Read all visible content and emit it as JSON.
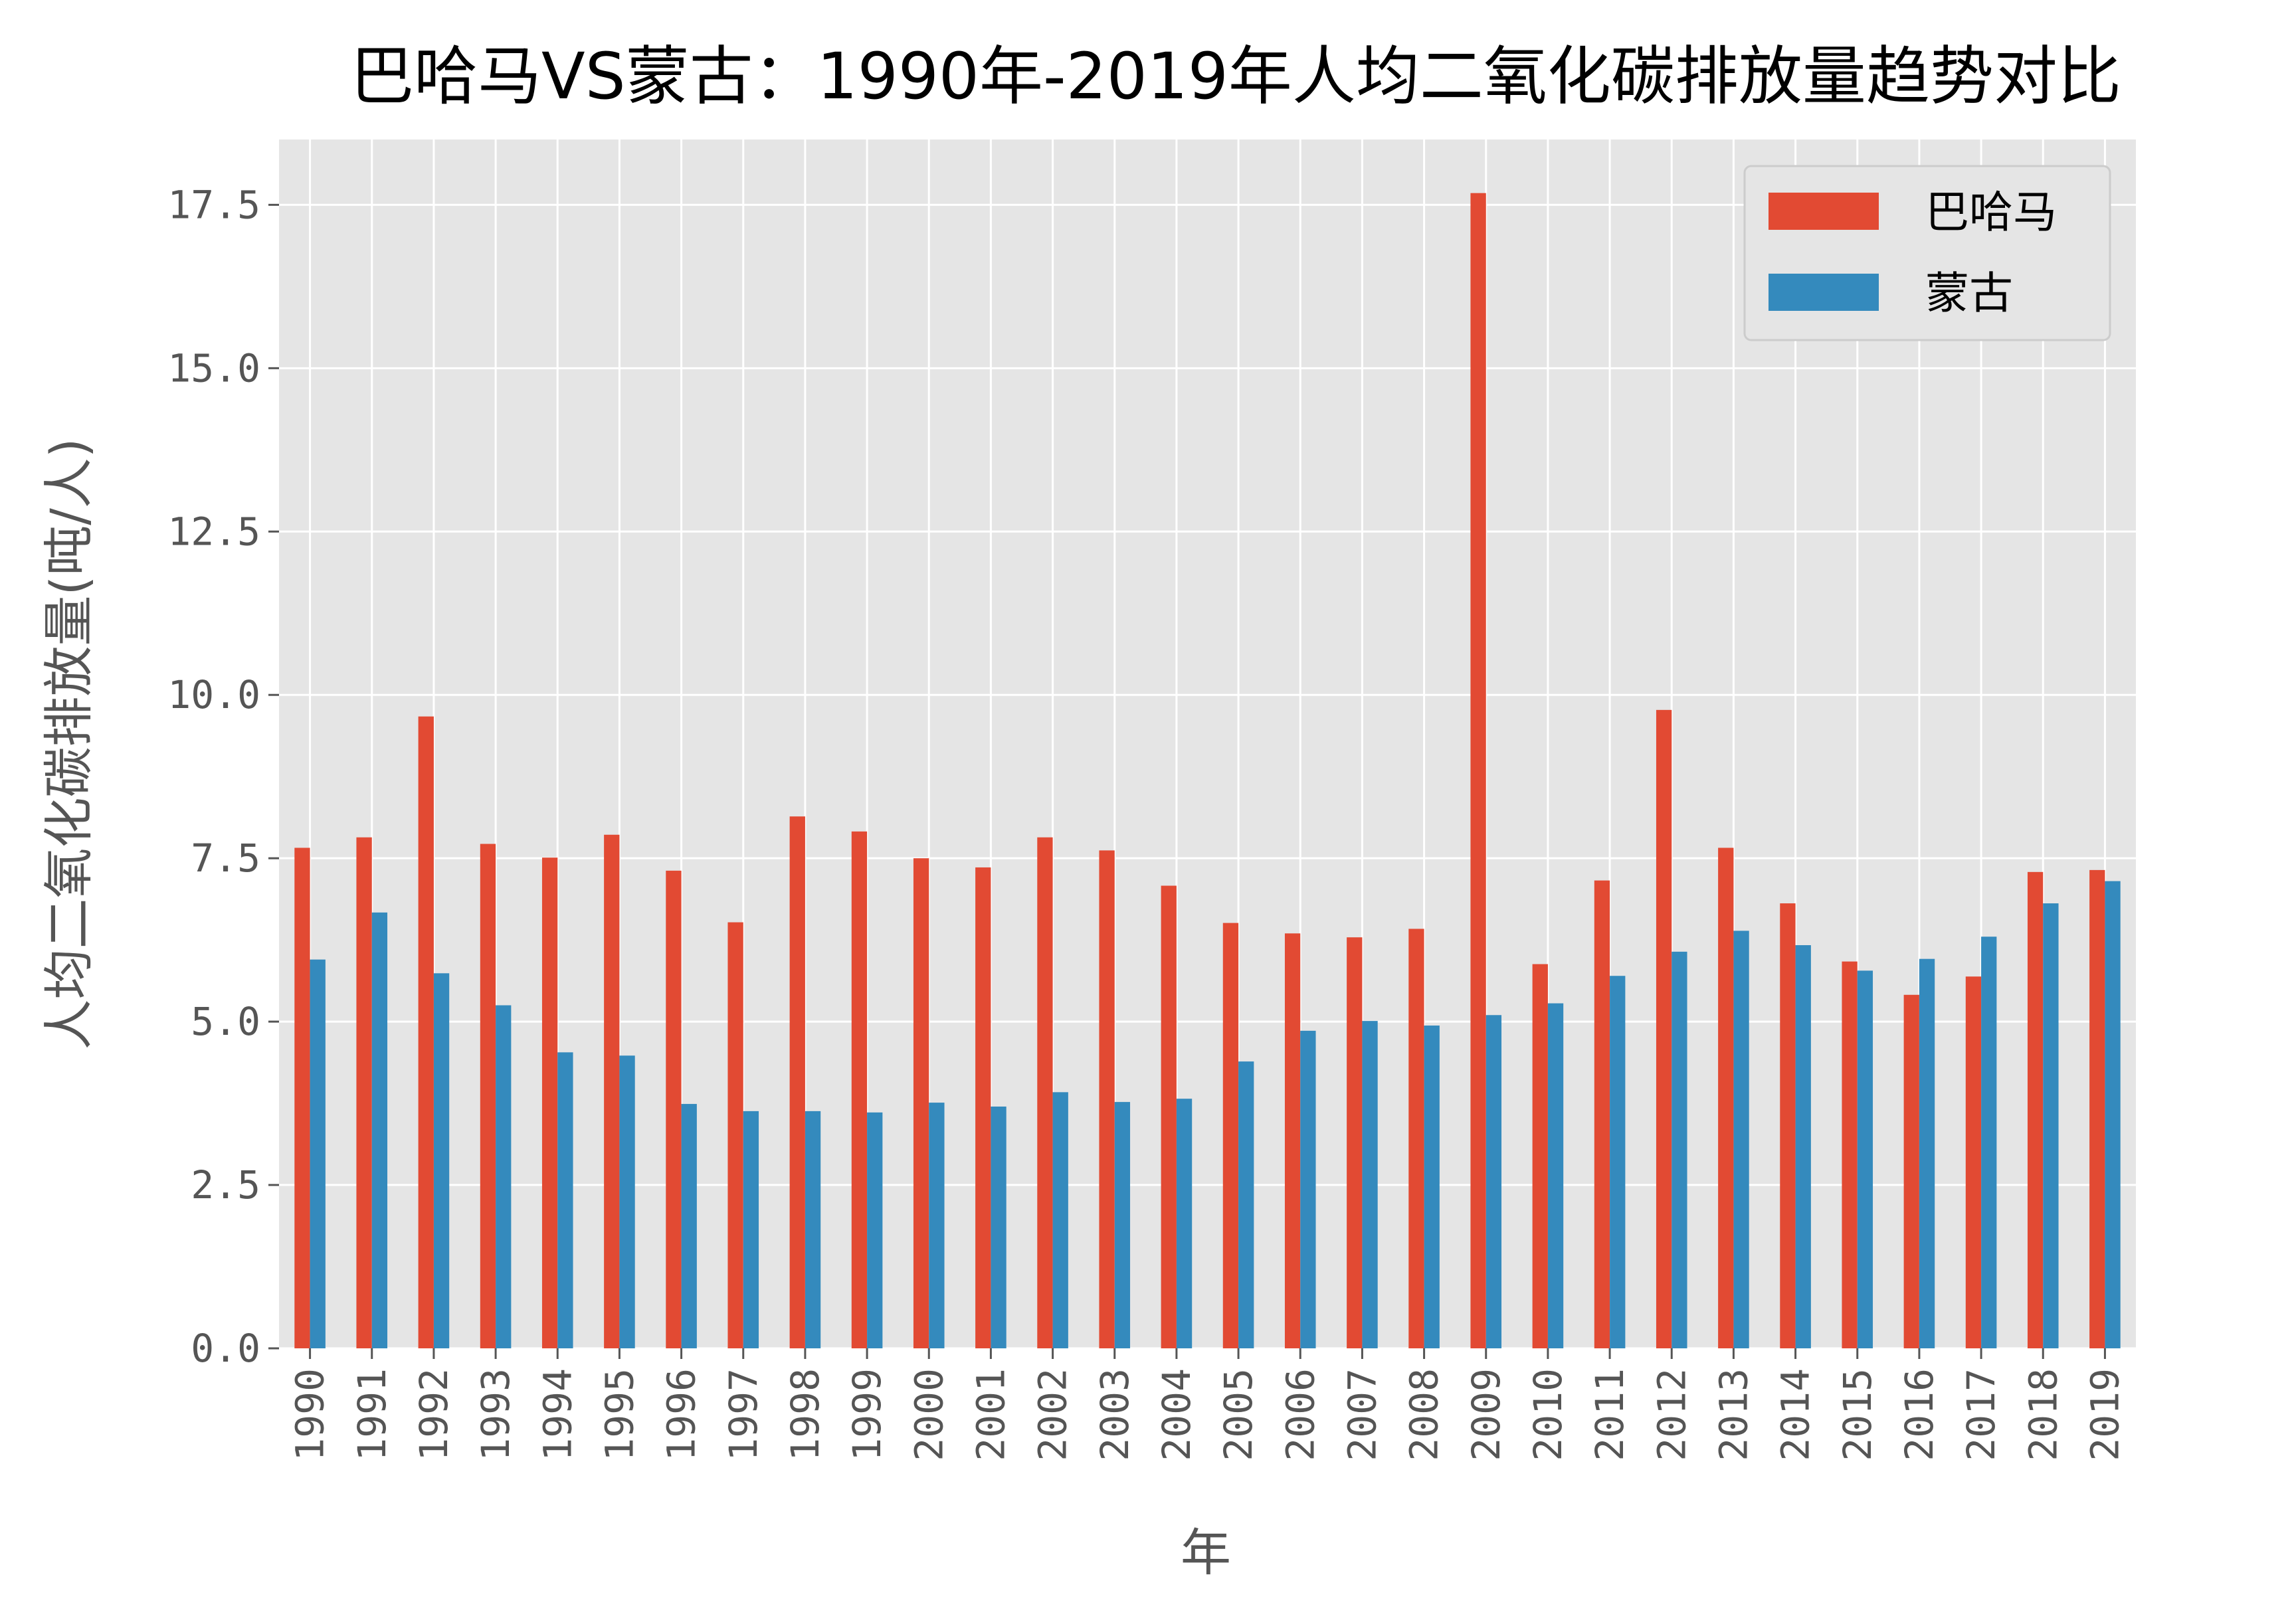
{
  "chart_data": {
    "type": "bar",
    "title": "巴哈马VS蒙古：1990年-2019年人均二氧化碳排放量趋势对比",
    "xlabel": "年",
    "ylabel": "人均二氧化碳排放量(吨/人)",
    "ylim": [
      0,
      18.5
    ],
    "yticks": [
      "0.0",
      "2.5",
      "5.0",
      "7.5",
      "10.0",
      "12.5",
      "15.0",
      "17.5"
    ],
    "grid": true,
    "legend_position": "top-right",
    "categories": [
      "1990",
      "1991",
      "1992",
      "1993",
      "1994",
      "1995",
      "1996",
      "1997",
      "1998",
      "1999",
      "2000",
      "2001",
      "2002",
      "2003",
      "2004",
      "2005",
      "2006",
      "2007",
      "2008",
      "2009",
      "2010",
      "2011",
      "2012",
      "2013",
      "2014",
      "2015",
      "2016",
      "2017",
      "2018",
      "2019"
    ],
    "series": [
      {
        "name": "巴哈马",
        "color": "#E24A33",
        "values": [
          7.66,
          7.82,
          9.67,
          7.72,
          7.51,
          7.86,
          7.31,
          6.52,
          8.14,
          7.91,
          7.5,
          7.36,
          7.82,
          7.62,
          7.08,
          6.51,
          6.35,
          6.29,
          6.42,
          17.68,
          5.88,
          7.16,
          9.77,
          7.66,
          6.81,
          5.92,
          5.41,
          5.69,
          7.29,
          7.32
        ]
      },
      {
        "name": "蒙古",
        "color": "#348ABD",
        "values": [
          5.95,
          6.67,
          5.74,
          5.25,
          4.53,
          4.48,
          3.74,
          3.63,
          3.63,
          3.61,
          3.76,
          3.7,
          3.92,
          3.77,
          3.82,
          4.39,
          4.86,
          5.01,
          4.94,
          5.1,
          5.28,
          5.7,
          6.07,
          6.39,
          6.17,
          5.78,
          5.96,
          6.3,
          6.81,
          7.15
        ]
      }
    ]
  }
}
